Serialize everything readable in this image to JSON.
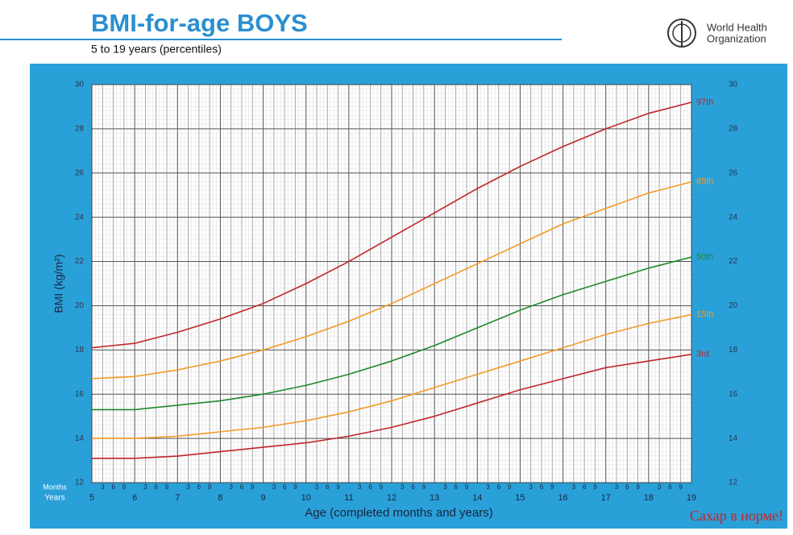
{
  "chart_data": {
    "type": "line",
    "title": "BMI-for-age  BOYS",
    "subtitle": "5 to 19 years (percentiles)",
    "organization": [
      "World Health",
      "Organization"
    ],
    "ylabel": "BMI (kg/m²)",
    "xlabel": "Age (completed months and years)",
    "minor_axis_label": "Months",
    "major_axis_label": "Years",
    "watermark": "Сахар в норме!",
    "x": [
      5,
      6,
      7,
      8,
      9,
      10,
      11,
      12,
      13,
      14,
      15,
      16,
      17,
      18,
      19
    ],
    "xlim": [
      5,
      19
    ],
    "xticks": [
      5,
      6,
      7,
      8,
      9,
      10,
      11,
      12,
      13,
      14,
      15,
      16,
      17,
      18,
      19
    ],
    "xticks_minor": [
      {
        "value": 5.25,
        "label": "3"
      },
      {
        "value": 5.5,
        "label": "6"
      },
      {
        "value": 5.75,
        "label": "9"
      },
      {
        "value": 6.25,
        "label": "3"
      },
      {
        "value": 6.5,
        "label": "6"
      },
      {
        "value": 6.75,
        "label": "9"
      },
      {
        "value": 7.25,
        "label": "3"
      },
      {
        "value": 7.5,
        "label": "6"
      },
      {
        "value": 7.75,
        "label": "9"
      },
      {
        "value": 8.25,
        "label": "3"
      },
      {
        "value": 8.5,
        "label": "6"
      },
      {
        "value": 8.75,
        "label": "9"
      },
      {
        "value": 9.25,
        "label": "3"
      },
      {
        "value": 9.5,
        "label": "6"
      },
      {
        "value": 9.75,
        "label": "9"
      },
      {
        "value": 10.25,
        "label": "3"
      },
      {
        "value": 10.5,
        "label": "6"
      },
      {
        "value": 10.75,
        "label": "9"
      },
      {
        "value": 11.25,
        "label": "3"
      },
      {
        "value": 11.5,
        "label": "6"
      },
      {
        "value": 11.75,
        "label": "9"
      },
      {
        "value": 12.25,
        "label": "3"
      },
      {
        "value": 12.5,
        "label": "6"
      },
      {
        "value": 12.75,
        "label": "9"
      },
      {
        "value": 13.25,
        "label": "3"
      },
      {
        "value": 13.5,
        "label": "6"
      },
      {
        "value": 13.75,
        "label": "9"
      },
      {
        "value": 14.25,
        "label": "3"
      },
      {
        "value": 14.5,
        "label": "6"
      },
      {
        "value": 14.75,
        "label": "9"
      },
      {
        "value": 15.25,
        "label": "3"
      },
      {
        "value": 15.5,
        "label": "6"
      },
      {
        "value": 15.75,
        "label": "9"
      },
      {
        "value": 16.25,
        "label": "3"
      },
      {
        "value": 16.5,
        "label": "6"
      },
      {
        "value": 16.75,
        "label": "9"
      },
      {
        "value": 17.25,
        "label": "3"
      },
      {
        "value": 17.5,
        "label": "6"
      },
      {
        "value": 17.75,
        "label": "9"
      },
      {
        "value": 18.25,
        "label": "3"
      },
      {
        "value": 18.5,
        "label": "6"
      },
      {
        "value": 18.75,
        "label": "9"
      }
    ],
    "ylim": [
      12,
      30
    ],
    "yticks": [
      12,
      14,
      16,
      18,
      20,
      22,
      24,
      26,
      28,
      30
    ],
    "grid": true,
    "series": [
      {
        "name": "97th",
        "color": "#c0262c",
        "values": [
          18.1,
          18.3,
          18.8,
          19.4,
          20.1,
          21.0,
          22.0,
          23.1,
          24.2,
          25.3,
          26.3,
          27.2,
          28.0,
          28.7,
          29.2
        ]
      },
      {
        "name": "85th",
        "color": "#f29b26",
        "values": [
          16.7,
          16.8,
          17.1,
          17.5,
          18.0,
          18.6,
          19.3,
          20.1,
          21.0,
          21.9,
          22.8,
          23.7,
          24.4,
          25.1,
          25.6
        ]
      },
      {
        "name": "50th",
        "color": "#1f8a2a",
        "values": [
          15.3,
          15.3,
          15.5,
          15.7,
          16.0,
          16.4,
          16.9,
          17.5,
          18.2,
          19.0,
          19.8,
          20.5,
          21.1,
          21.7,
          22.2
        ]
      },
      {
        "name": "15th",
        "color": "#f29b26",
        "values": [
          14.0,
          14.0,
          14.1,
          14.3,
          14.5,
          14.8,
          15.2,
          15.7,
          16.3,
          16.9,
          17.5,
          18.1,
          18.7,
          19.2,
          19.6
        ]
      },
      {
        "name": "3rd",
        "color": "#c0262c",
        "values": [
          13.1,
          13.1,
          13.2,
          13.4,
          13.6,
          13.8,
          14.1,
          14.5,
          15.0,
          15.6,
          16.2,
          16.7,
          17.2,
          17.5,
          17.8
        ]
      }
    ]
  }
}
